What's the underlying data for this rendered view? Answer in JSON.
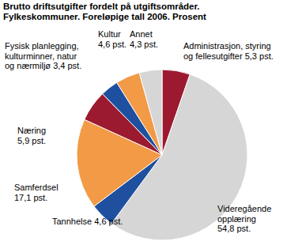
{
  "chart_data": {
    "type": "pie",
    "title": "Brutto driftsutgifter fordelt på utgiftsområder.",
    "subtitle": "Fylkeskommuner. Foreløpige tall 2006. Prosent",
    "categories": [
      "Administrasjon, styring og fellesutgifter",
      "Videregående opplæring",
      "Tannhelse",
      "Samferdsel",
      "Næring",
      "Fysisk planlegging, kulturminner, natur og nærmiljø",
      "Kultur",
      "Annet"
    ],
    "values": [
      5.3,
      54.8,
      4.6,
      17.1,
      5.9,
      3.4,
      4.6,
      4.3
    ],
    "value_labels": [
      "5,3 pst.",
      "54,8 pst.",
      "4,6 pst.",
      "17,1 pst.",
      "5,9 pst.",
      "3,4 pst.",
      "4,6 pst.",
      "4,3 pst."
    ],
    "colors": [
      "#9c1a2f",
      "#d6d6d6",
      "#1f50a0",
      "#f29a45",
      "#9c1a2f",
      "#1f50a0",
      "#f29a45",
      "#d6d6d6"
    ],
    "data_labels": true
  }
}
